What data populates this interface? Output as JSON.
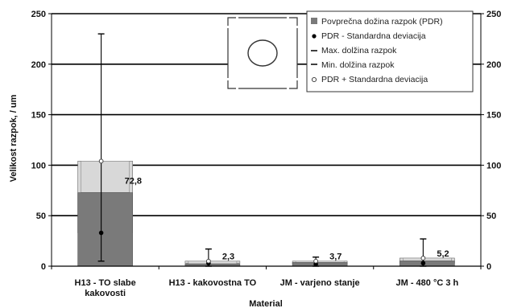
{
  "chart_data": {
    "type": "bar",
    "xlabel": "Material",
    "ylabel": "Velikost razpok, / um",
    "ylim": [
      0,
      250
    ],
    "yticks": [
      0,
      50,
      100,
      150,
      200,
      250
    ],
    "grid": true,
    "legend_placement": "top-right",
    "categories": [
      [
        "H13 - TO slabe",
        "kakovosti"
      ],
      [
        "H13 - kakovostna TO"
      ],
      [
        "JM - varjeno stanje"
      ],
      [
        "JM - 480 °C 3 h"
      ]
    ],
    "series": [
      {
        "name": "Povprečna dožina razpok (PDR)",
        "values": [
          72.8,
          2.3,
          3.7,
          5.2
        ],
        "labels": [
          "72,8",
          "2,3",
          "3,7",
          "5,2"
        ]
      },
      {
        "name": "PDR - Standardna deviacija",
        "values": [
          33,
          3,
          2,
          3
        ]
      },
      {
        "name": "Max. dolžina razpok",
        "values": [
          230,
          17,
          9,
          27
        ]
      },
      {
        "name": "Min. dolžina razpok",
        "values": [
          5,
          0,
          0,
          0
        ]
      },
      {
        "name": "PDR + Standardna deviacija",
        "values": [
          104,
          5,
          5,
          8
        ]
      }
    ],
    "colors": {
      "bar": "#7a7a7a",
      "stddev_box": "#d8d8d8",
      "gridline": "#000000"
    }
  }
}
